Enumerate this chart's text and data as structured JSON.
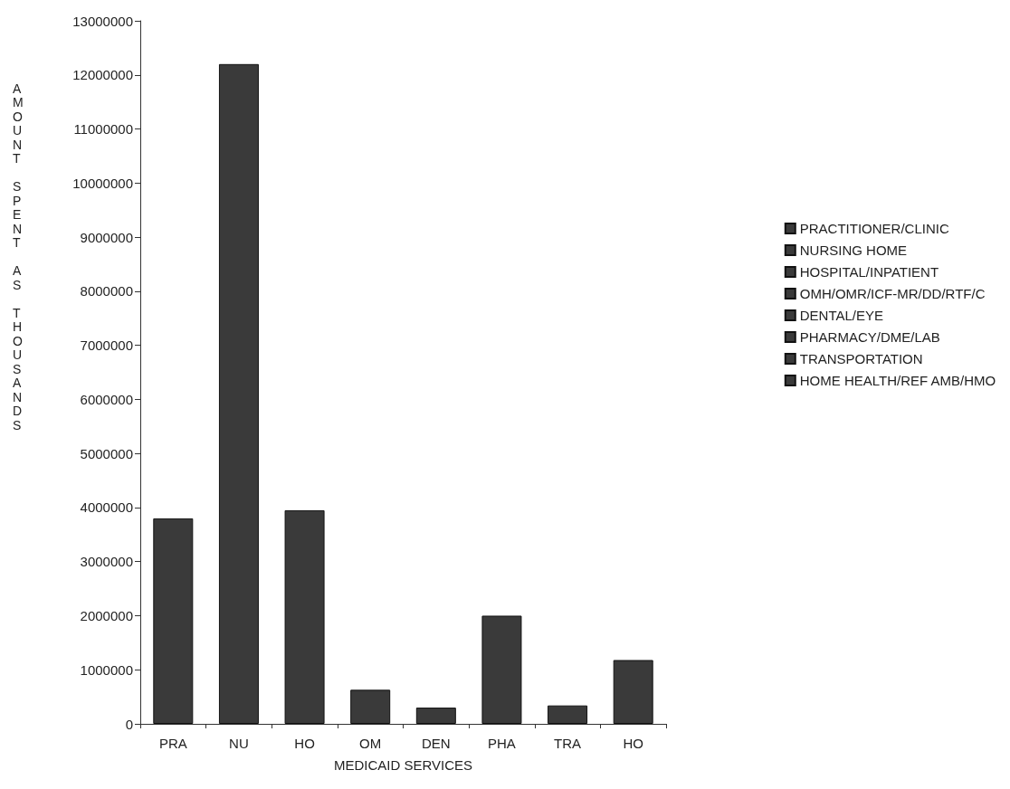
{
  "chart_data": {
    "type": "bar",
    "xlabel": "MEDICAID SERVICES",
    "ylabel": "AMOUNT SPENT AS THOUSANDS",
    "categories": [
      "PRA",
      "NU",
      "HO",
      "OM",
      "DEN",
      "PHA",
      "TRA",
      "HO"
    ],
    "series": [
      {
        "name": "PRACTITIONER/CLINIC",
        "color": "#3a3a3a",
        "values": [
          3800000,
          null,
          null,
          null,
          null,
          null,
          null,
          null
        ]
      },
      {
        "name": "NURSING HOME",
        "color": "#3a3a3a",
        "values": [
          null,
          12200000,
          null,
          null,
          null,
          null,
          null,
          null
        ]
      },
      {
        "name": "HOSPITAL/INPATIENT",
        "color": "#3a3a3a",
        "values": [
          null,
          null,
          3950000,
          null,
          null,
          null,
          null,
          null
        ]
      },
      {
        "name": "OMH/OMR/ICF-MR/DD/RTF/C",
        "color": "#3a3a3a",
        "values": [
          null,
          null,
          null,
          630000,
          null,
          null,
          null,
          null
        ]
      },
      {
        "name": "DENTAL/EYE",
        "color": "#3a3a3a",
        "values": [
          null,
          null,
          null,
          null,
          300000,
          null,
          null,
          null
        ]
      },
      {
        "name": "PHARMACY/DME/LAB",
        "color": "#3a3a3a",
        "values": [
          null,
          null,
          null,
          null,
          null,
          2000000,
          null,
          null
        ]
      },
      {
        "name": "TRANSPORTATION",
        "color": "#3a3a3a",
        "values": [
          null,
          null,
          null,
          null,
          null,
          null,
          340000,
          null
        ]
      },
      {
        "name": "HOME HEALTH/REF AMB/HMO",
        "color": "#3a3a3a",
        "values": [
          null,
          null,
          null,
          null,
          null,
          null,
          null,
          1180000
        ]
      }
    ],
    "ylim": [
      0,
      13000000
    ],
    "yticks": [
      0,
      1000000,
      2000000,
      3000000,
      4000000,
      5000000,
      6000000,
      7000000,
      8000000,
      9000000,
      10000000,
      11000000,
      12000000,
      13000000
    ],
    "grid": false,
    "legend": "right"
  }
}
